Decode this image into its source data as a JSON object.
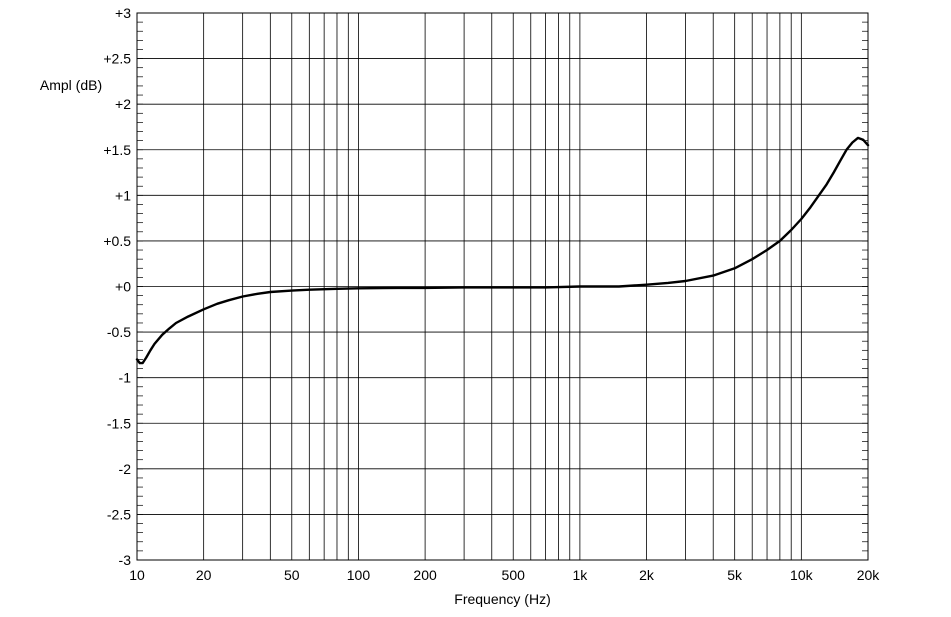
{
  "chart_data": {
    "type": "line",
    "xlabel": "Frequency (Hz)",
    "ylabel": "Ampl (dB)",
    "x_scale": "log",
    "xlim": [
      10,
      20000
    ],
    "ylim": [
      -3,
      3
    ],
    "grid": true,
    "x_tick_labels": [
      {
        "value": 10,
        "label": "10"
      },
      {
        "value": 20,
        "label": "20"
      },
      {
        "value": 50,
        "label": "50"
      },
      {
        "value": 100,
        "label": "100"
      },
      {
        "value": 200,
        "label": "200"
      },
      {
        "value": 500,
        "label": "500"
      },
      {
        "value": 1000,
        "label": "1k"
      },
      {
        "value": 2000,
        "label": "2k"
      },
      {
        "value": 5000,
        "label": "5k"
      },
      {
        "value": 10000,
        "label": "10k"
      },
      {
        "value": 20000,
        "label": "20k"
      }
    ],
    "y_tick_labels": [
      {
        "value": 3,
        "label": "+3"
      },
      {
        "value": 2.5,
        "label": "+2.5"
      },
      {
        "value": 2,
        "label": "+2"
      },
      {
        "value": 1.5,
        "label": "+1.5"
      },
      {
        "value": 1,
        "label": "+1"
      },
      {
        "value": 0.5,
        "label": "+0.5"
      },
      {
        "value": 0,
        "label": "+0"
      },
      {
        "value": -0.5,
        "label": "-0.5"
      },
      {
        "value": -1,
        "label": "-1"
      },
      {
        "value": -1.5,
        "label": "-1.5"
      },
      {
        "value": -2,
        "label": "-2"
      },
      {
        "value": -2.5,
        "label": "-2.5"
      },
      {
        "value": -3,
        "label": "-3"
      }
    ],
    "series": [
      {
        "color": "#000000",
        "x": [
          10,
          10.3,
          10.6,
          11,
          11.5,
          12,
          13,
          14,
          15,
          17,
          20,
          23,
          26,
          30,
          35,
          40,
          50,
          60,
          80,
          100,
          150,
          200,
          300,
          500,
          700,
          1000,
          1500,
          2000,
          2500,
          3000,
          4000,
          5000,
          6000,
          7000,
          8000,
          9000,
          10000,
          11000,
          12000,
          13000,
          14000,
          15000,
          16000,
          17000,
          18000,
          19000,
          20000
        ],
        "y": [
          -0.8,
          -0.84,
          -0.84,
          -0.78,
          -0.7,
          -0.63,
          -0.53,
          -0.46,
          -0.4,
          -0.33,
          -0.25,
          -0.19,
          -0.15,
          -0.11,
          -0.08,
          -0.06,
          -0.045,
          -0.035,
          -0.025,
          -0.02,
          -0.015,
          -0.015,
          -0.01,
          -0.01,
          -0.01,
          0.0,
          0.0,
          0.02,
          0.04,
          0.06,
          0.12,
          0.2,
          0.3,
          0.4,
          0.5,
          0.62,
          0.74,
          0.87,
          1.0,
          1.12,
          1.25,
          1.38,
          1.5,
          1.58,
          1.63,
          1.61,
          1.55
        ]
      }
    ]
  }
}
